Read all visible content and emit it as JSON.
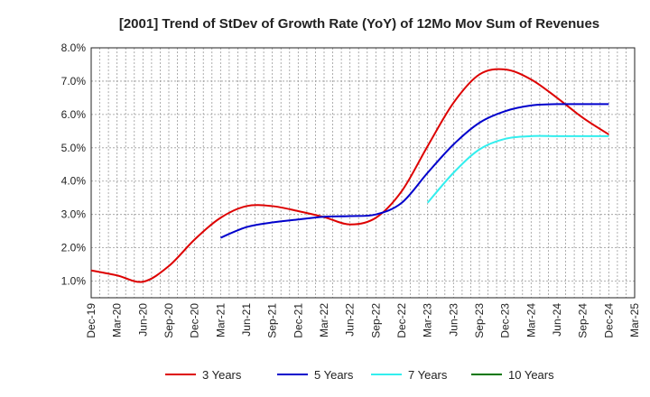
{
  "chart_data": {
    "type": "line",
    "title": "[2001]  Trend of StDev of Growth Rate (YoY) of 12Mo Mov Sum of Revenues",
    "xlabel": "",
    "ylabel": "",
    "ylim": [
      0.5,
      8.0
    ],
    "y_ticks": [
      "1.0%",
      "2.0%",
      "3.0%",
      "4.0%",
      "5.0%",
      "6.0%",
      "7.0%",
      "8.0%"
    ],
    "y_tick_values": [
      1,
      2,
      3,
      4,
      5,
      6,
      7,
      8
    ],
    "x_ticks": [
      "Dec-19",
      "Mar-20",
      "Jun-20",
      "Sep-20",
      "Dec-20",
      "Mar-21",
      "Jun-21",
      "Sep-21",
      "Dec-21",
      "Mar-22",
      "Jun-22",
      "Sep-22",
      "Dec-22",
      "Mar-23",
      "Jun-23",
      "Sep-23",
      "Dec-23",
      "Mar-24",
      "Jun-24",
      "Sep-24",
      "Dec-24",
      "Mar-25"
    ],
    "grid": true,
    "legend_position": "bottom",
    "series": [
      {
        "name": "3 Years",
        "color": "#dd0000",
        "points": [
          [
            0,
            1.32
          ],
          [
            1,
            1.17
          ],
          [
            2,
            0.98
          ],
          [
            3,
            1.45
          ],
          [
            4,
            2.25
          ],
          [
            5,
            2.9
          ],
          [
            6,
            3.25
          ],
          [
            7,
            3.25
          ],
          [
            8,
            3.1
          ],
          [
            9,
            2.92
          ],
          [
            10,
            2.7
          ],
          [
            11,
            2.9
          ],
          [
            12,
            3.7
          ],
          [
            13,
            5.05
          ],
          [
            14,
            6.35
          ],
          [
            15,
            7.2
          ],
          [
            16,
            7.35
          ],
          [
            17,
            7.05
          ],
          [
            18,
            6.5
          ],
          [
            19,
            5.9
          ],
          [
            20,
            5.4
          ]
        ]
      },
      {
        "name": "5 Years",
        "color": "#0000cc",
        "points": [
          [
            5,
            2.3
          ],
          [
            6,
            2.62
          ],
          [
            7,
            2.76
          ],
          [
            8,
            2.85
          ],
          [
            9,
            2.93
          ],
          [
            10,
            2.95
          ],
          [
            11,
            3.0
          ],
          [
            12,
            3.35
          ],
          [
            13,
            4.25
          ],
          [
            14,
            5.1
          ],
          [
            15,
            5.75
          ],
          [
            16,
            6.1
          ],
          [
            17,
            6.27
          ],
          [
            18,
            6.31
          ],
          [
            19,
            6.31
          ],
          [
            20,
            6.31
          ]
        ]
      },
      {
        "name": "7 Years",
        "color": "#33eeee",
        "points": [
          [
            13,
            3.35
          ],
          [
            14,
            4.25
          ],
          [
            15,
            4.95
          ],
          [
            16,
            5.27
          ],
          [
            17,
            5.35
          ],
          [
            18,
            5.35
          ],
          [
            19,
            5.35
          ],
          [
            20,
            5.35
          ]
        ]
      },
      {
        "name": "10 Years",
        "color": "#007700",
        "points": []
      }
    ]
  }
}
